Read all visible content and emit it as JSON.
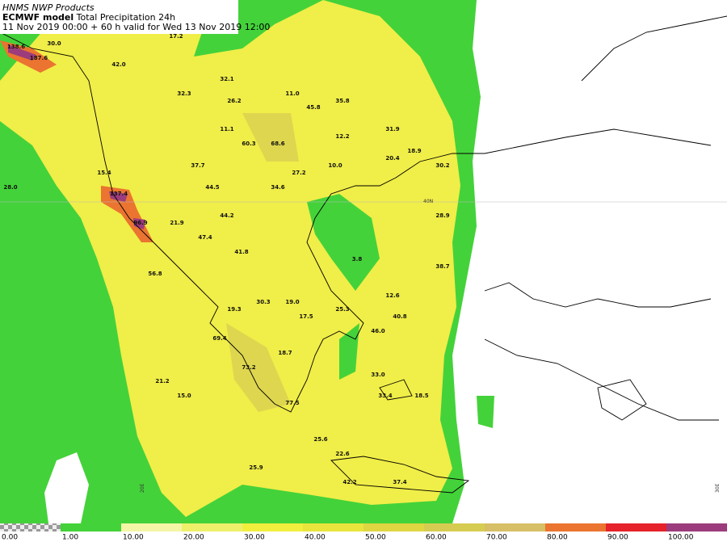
{
  "header": {
    "line1": "HNMS NWP Products",
    "model": "ECMWF model",
    "product": "Total Precipitation 24h",
    "line2": "11 Nov 2019 00:00 + 60 h valid for Wed 13 Nov 2019 12:00"
  },
  "map_labels": [
    "138.6",
    "187.6",
    "17.2",
    "30.0",
    "42.0",
    "32.1",
    "32.3",
    "26.2",
    "11.0",
    "45.8",
    "35.8",
    "11.1",
    "12.2",
    "31.9",
    "60.3",
    "68.6",
    "18.9",
    "20.4",
    "10.0",
    "30.2",
    "37.7",
    "27.2",
    "15.4",
    "44.5",
    "34.6",
    "28.0",
    "137.4",
    "28.9",
    "44.2",
    "21.9",
    "96.9",
    "47.4",
    "41.8",
    "3.8",
    "38.7",
    "56.8",
    "12.6",
    "30.3",
    "19.0",
    "25.3",
    "19.3",
    "17.5",
    "40.8",
    "46.0",
    "69.4",
    "18.7",
    "73.2",
    "33.0",
    "21.2",
    "15.0",
    "33.4",
    "18.5",
    "77.5",
    "25.6",
    "22.6",
    "25.9",
    "42.2",
    "37.4"
  ],
  "grid_labels": [
    "40N",
    "20E",
    "30E"
  ],
  "colorbar": {
    "labels": [
      "0.00",
      "1.00",
      "10.00",
      "20.00",
      "30.00",
      "40.00",
      "50.00",
      "60.00",
      "70.00",
      "80.00",
      "90.00",
      "100.00"
    ],
    "colors": [
      "#cfcfcf",
      "#44d23a",
      "#f4f6a6",
      "#eef06a",
      "#f2ee3e",
      "#e9e53c",
      "#dfd642",
      "#d6cc52",
      "#d6bf66",
      "#ea7430",
      "#e6222a",
      "#9c3c7c"
    ]
  }
}
